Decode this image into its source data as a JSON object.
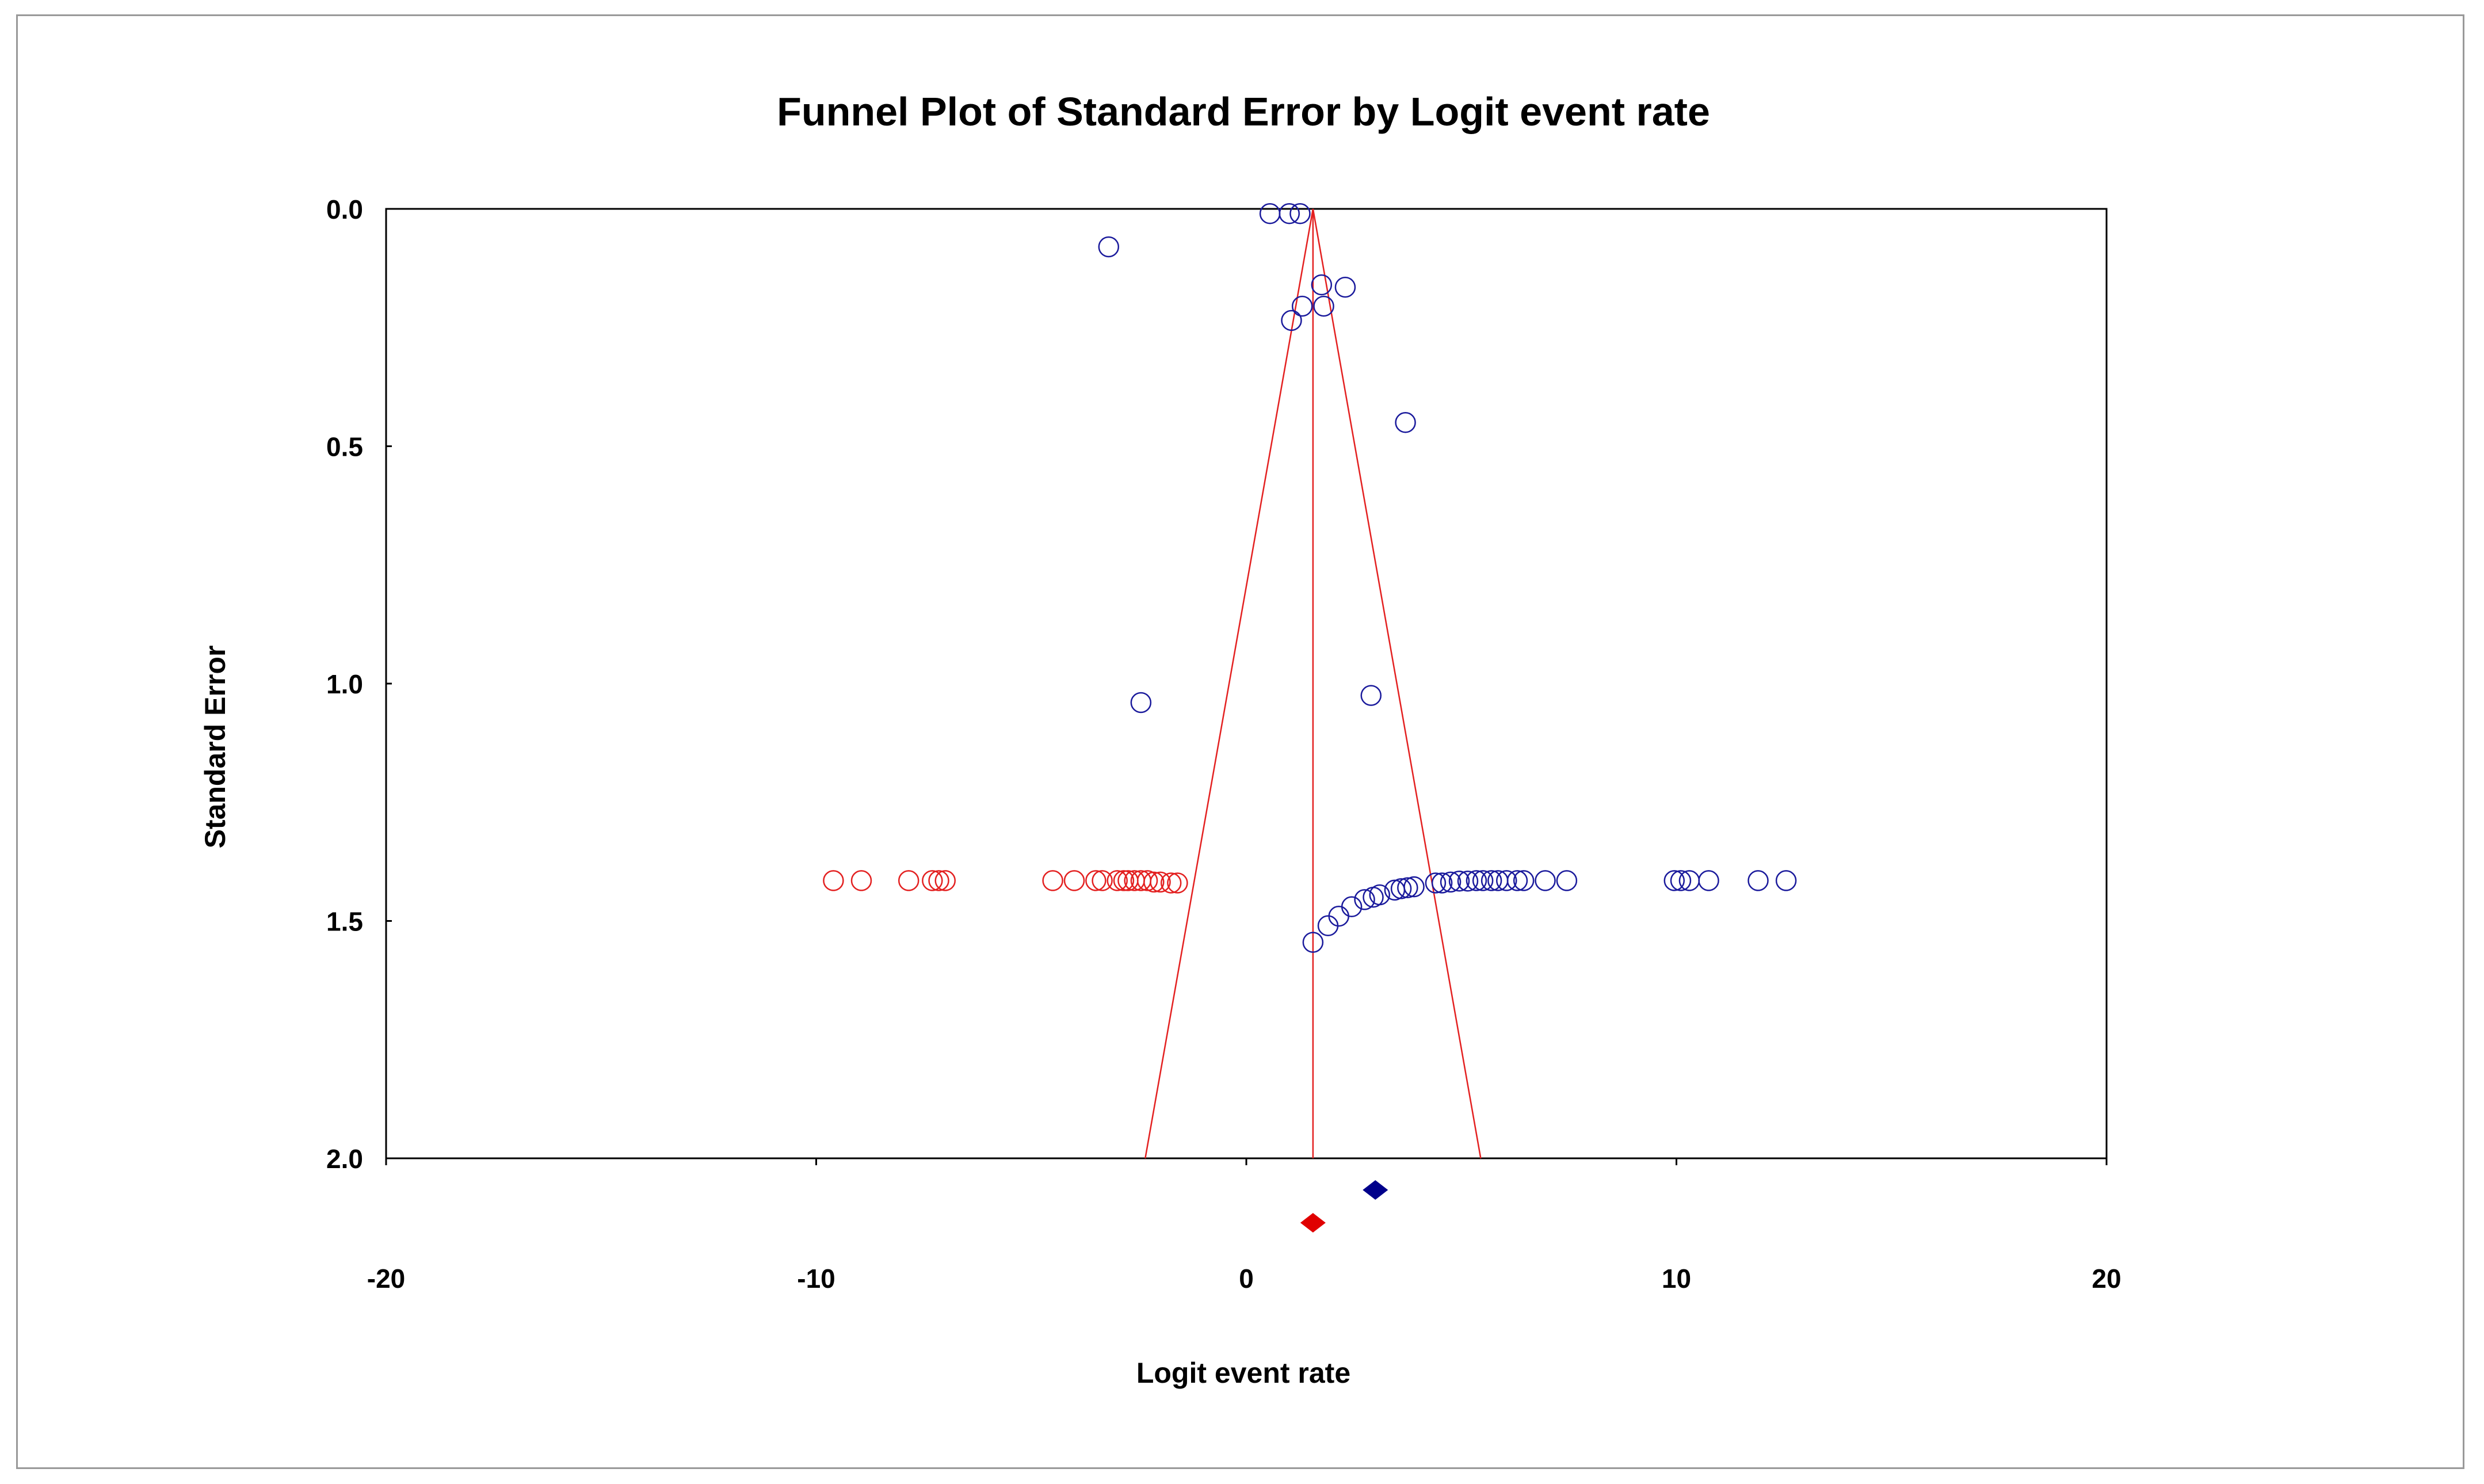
{
  "chart_data": {
    "type": "scatter",
    "title": "Funnel Plot of Standard Error by Logit event rate",
    "xlabel": "Logit event rate",
    "ylabel": "Standard Error",
    "xlim": [
      -20,
      20
    ],
    "ylim": [
      0,
      2
    ],
    "y_inverted": true,
    "x_ticks": [
      "-20",
      "-10",
      "0",
      "10",
      "20"
    ],
    "y_ticks": [
      "0.0",
      "0.5",
      "1.0",
      "1.5",
      "2.0"
    ],
    "grid": false,
    "legend": "none",
    "colors": {
      "observed": "#1a1a9c",
      "imputed": "#e32020",
      "funnel": "#e32020",
      "frame": "#999999"
    },
    "pooled_estimate": 1.55,
    "funnel_lines": {
      "center_x": 1.55,
      "left_bottom_x": -2.35,
      "right_bottom_x": 5.45,
      "se_max": 2.0
    },
    "summary_diamonds": [
      {
        "name": "observed",
        "x": 3.0,
        "color": "#00008b",
        "row": "upper"
      },
      {
        "name": "adjusted",
        "x": 1.55,
        "color": "#e00000",
        "row": "lower"
      }
    ],
    "series": [
      {
        "name": "observed",
        "x": [
          0.55,
          1.0,
          1.25,
          -3.2,
          1.75,
          2.3,
          1.3,
          1.8,
          1.05,
          3.7,
          2.9,
          -2.45,
          1.55,
          1.9,
          2.15,
          2.45,
          2.75,
          2.95,
          3.1,
          3.45,
          3.6,
          3.75,
          3.9,
          4.4,
          4.55,
          4.75,
          4.95,
          5.15,
          5.35,
          5.5,
          5.7,
          5.85,
          6.05,
          6.3,
          6.45,
          6.95,
          7.45,
          9.95,
          10.1,
          10.3,
          10.75,
          11.9,
          12.55
        ],
        "y": [
          0.01,
          0.01,
          0.01,
          0.08,
          0.16,
          0.165,
          0.205,
          0.205,
          0.235,
          0.45,
          1.025,
          1.04,
          1.545,
          1.51,
          1.49,
          1.47,
          1.455,
          1.45,
          1.445,
          1.435,
          1.432,
          1.43,
          1.428,
          1.42,
          1.42,
          1.418,
          1.416,
          1.416,
          1.415,
          1.415,
          1.415,
          1.415,
          1.415,
          1.415,
          1.415,
          1.415,
          1.415,
          1.415,
          1.415,
          1.415,
          1.415,
          1.415,
          1.415
        ]
      },
      {
        "name": "imputed",
        "x": [
          -9.6,
          -8.95,
          -7.85,
          -7.3,
          -7.15,
          -7.0,
          -4.5,
          -4.0,
          -3.5,
          -3.35,
          -3.0,
          -2.85,
          -2.75,
          -2.6,
          -2.45,
          -2.3,
          -2.15,
          -2.0,
          -1.75,
          -1.6
        ],
        "y": [
          1.415,
          1.415,
          1.415,
          1.415,
          1.415,
          1.415,
          1.415,
          1.415,
          1.415,
          1.415,
          1.415,
          1.415,
          1.415,
          1.415,
          1.415,
          1.415,
          1.418,
          1.418,
          1.42,
          1.42
        ]
      }
    ]
  }
}
